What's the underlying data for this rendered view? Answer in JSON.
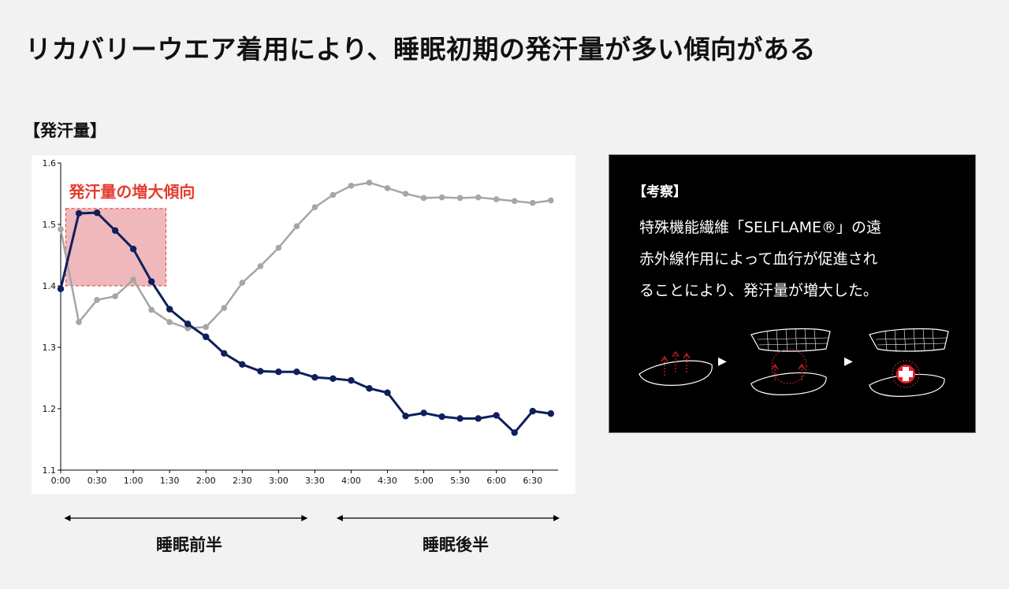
{
  "page": {
    "title": "リカバリーウエア着用により、睡眠初期の発汗量が多い傾向がある",
    "section_label": "【発汗量】"
  },
  "chart_data": {
    "type": "line",
    "title": "",
    "xlabel": "",
    "ylabel": "",
    "ylim": [
      1.1,
      1.6
    ],
    "yticks": [
      "1.1",
      "1.2",
      "1.3",
      "1.4",
      "1.5",
      "1.6"
    ],
    "xtick_labels": [
      "0:00",
      "0:30",
      "1:00",
      "1:30",
      "2:00",
      "2:30",
      "3:00",
      "3:30",
      "4:00",
      "4:30",
      "5:00",
      "5:30",
      "6:00",
      "6:30"
    ],
    "x": [
      0,
      0.25,
      0.5,
      0.75,
      1,
      1.25,
      1.5,
      1.75,
      2,
      2.25,
      2.5,
      2.75,
      3,
      3.25,
      3.5,
      3.75,
      4,
      4.25,
      4.5,
      4.75,
      5,
      5.25,
      5.5,
      5.75,
      6,
      6.25,
      6.5,
      6.75
    ],
    "xlim": [
      0,
      6.85
    ],
    "grid": false,
    "series": [
      {
        "color": "#0d1f5c",
        "values": [
          1.395,
          1.518,
          1.519,
          1.49,
          1.46,
          1.407,
          1.362,
          1.338,
          1.317,
          1.29,
          1.272,
          1.261,
          1.26,
          1.26,
          1.251,
          1.249,
          1.246,
          1.233,
          1.226,
          1.188,
          1.193,
          1.187,
          1.184,
          1.184,
          1.189,
          1.161,
          1.196,
          1.192
        ]
      },
      {
        "color": "#a6a6a6",
        "values": [
          1.492,
          1.341,
          1.377,
          1.383,
          1.41,
          1.361,
          1.341,
          1.331,
          1.333,
          1.364,
          1.405,
          1.432,
          1.462,
          1.497,
          1.528,
          1.548,
          1.563,
          1.568,
          1.559,
          1.55,
          1.543,
          1.544,
          1.543,
          1.544,
          1.541,
          1.538,
          1.535,
          1.539
        ]
      }
    ],
    "annotation": {
      "text": "発汗量の増大傾向",
      "color": "#e53b2e",
      "x_range": [
        0.07,
        1.45
      ],
      "y_range": [
        1.4,
        1.526
      ]
    },
    "phases": [
      {
        "label": "睡眠前半",
        "x_range": [
          0.07,
          3.38
        ]
      },
      {
        "label": "睡眠後半",
        "x_range": [
          3.82,
          6.85
        ]
      }
    ]
  },
  "insight": {
    "heading": "【考察】",
    "lines": [
      "特殊機能繊維「SELFLAME®」の遠",
      "赤外線作用によって血行が促進され",
      "ることにより、発汗量が増大した。"
    ],
    "arrow_glyph": "▶",
    "cross_color": "#e0202b"
  }
}
